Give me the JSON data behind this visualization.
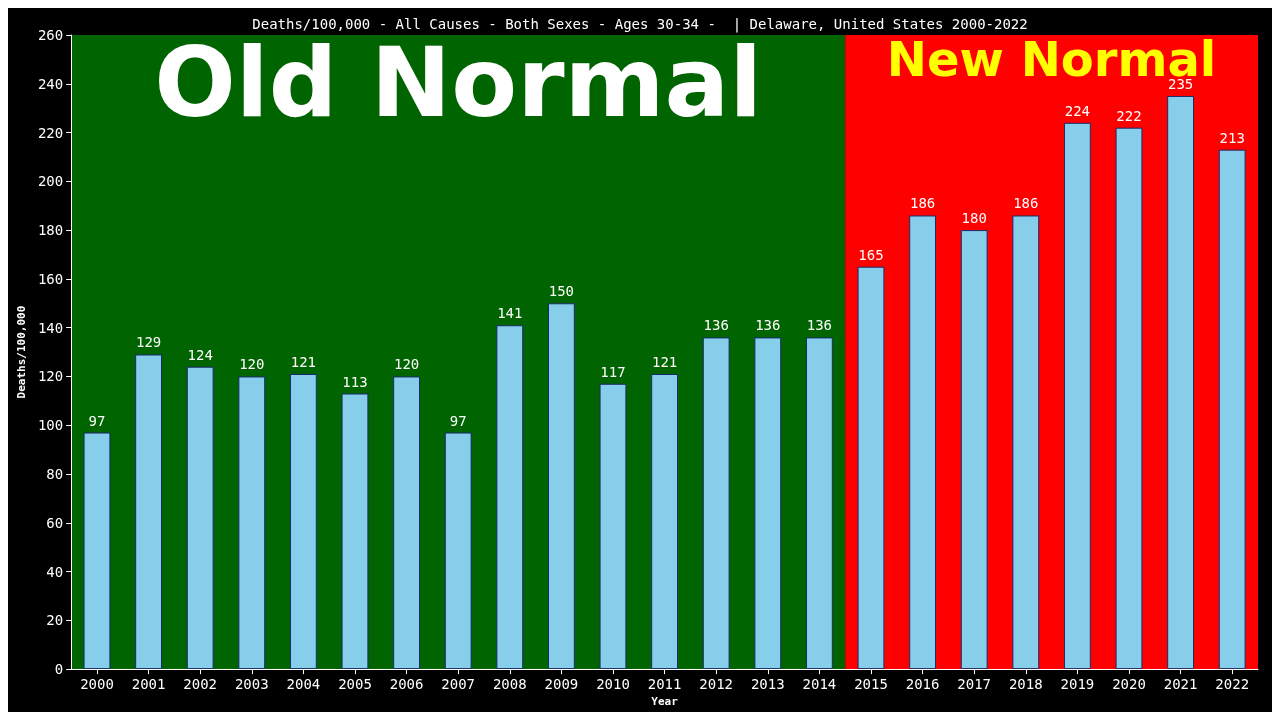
{
  "chart_data": {
    "type": "bar",
    "title": "Deaths/100,000 - All Causes - Both Sexes - Ages 30-34 -  | Delaware, United States 2000-2022",
    "xlabel": "Year",
    "ylabel": "Deaths/100,000",
    "categories": [
      "2000",
      "2001",
      "2002",
      "2003",
      "2004",
      "2005",
      "2006",
      "2007",
      "2008",
      "2009",
      "2010",
      "2011",
      "2012",
      "2013",
      "2014",
      "2015",
      "2016",
      "2017",
      "2018",
      "2019",
      "2020",
      "2021",
      "2022"
    ],
    "values": [
      97,
      129,
      124,
      120,
      121,
      113,
      120,
      97,
      141,
      150,
      117,
      121,
      136,
      136,
      136,
      165,
      186,
      180,
      186,
      224,
      222,
      235,
      213
    ],
    "color": "#87ceeb",
    "ylim": [
      0,
      260
    ],
    "yticks": [
      0,
      20,
      40,
      60,
      80,
      100,
      120,
      140,
      160,
      180,
      200,
      220,
      240,
      260
    ],
    "grid": false,
    "data_labels": true,
    "bands": [
      {
        "axis": "x",
        "from": "2000",
        "to": "2014",
        "label": "Old Normal",
        "color": "#006400"
      },
      {
        "axis": "x",
        "from": "2015",
        "to": "2022",
        "label": "New Normal",
        "color": "#ff0000"
      }
    ]
  }
}
